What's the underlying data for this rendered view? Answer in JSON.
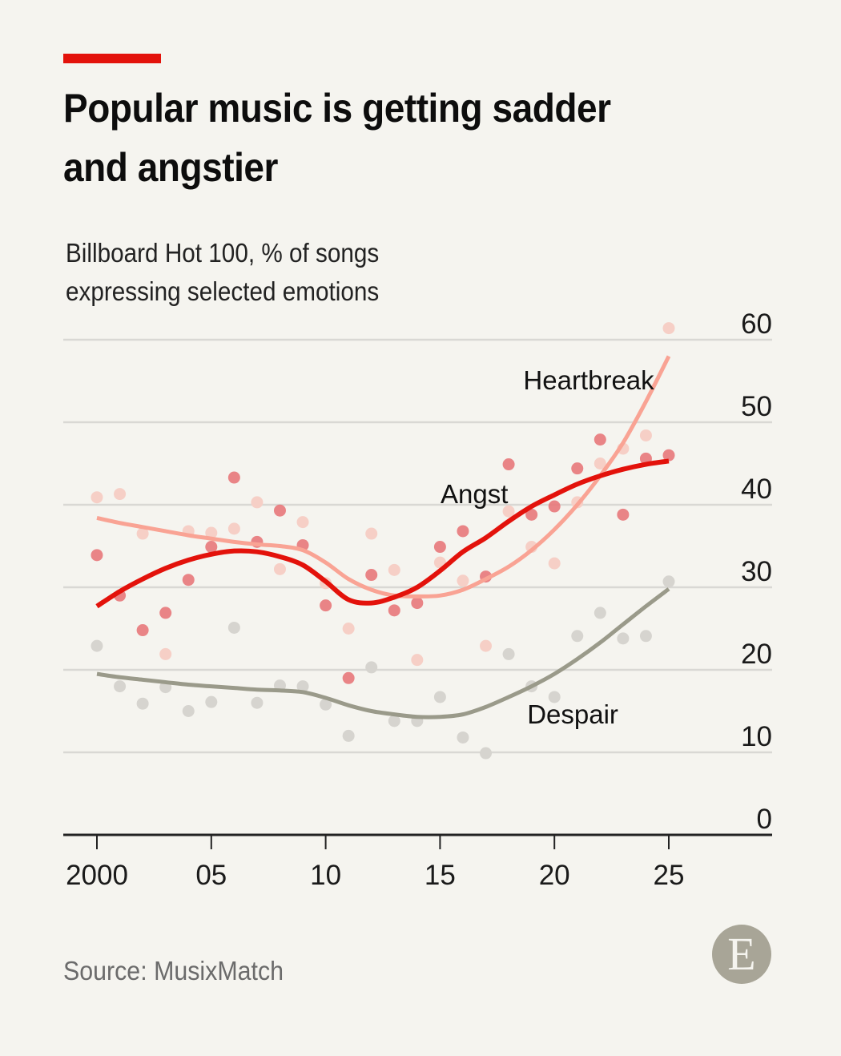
{
  "header": {
    "title": "Popular music is getting sadder and angstier",
    "subtitle": "Billboard Hot 100, % of songs expressing selected emotions"
  },
  "footer": {
    "source": "Source: MusixMatch",
    "logo_letter": "E"
  },
  "colors": {
    "accent": "#e3120b",
    "background": "#f5f4ef",
    "heartbreak_line": "#f9a394",
    "heartbreak_dot": "#f6cfc6",
    "angst_line": "#e3120b",
    "angst_dot": "#e8787a",
    "despair_line": "#9a9a8a",
    "despair_dot": "#d6d4cf",
    "gridline": "#d9d8d4",
    "axis": "#222222",
    "logo": "#a8a597"
  },
  "chart_data": {
    "type": "scatter",
    "title": "Popular music is getting sadder and angstier",
    "subtitle": "Billboard Hot 100, % of songs expressing selected emotions",
    "xlabel": "",
    "ylabel": "% of songs",
    "xlim": [
      1998.5,
      2029
    ],
    "ylim": [
      0,
      60
    ],
    "x_ticks": [
      2000,
      2005,
      2010,
      2015,
      2020,
      2025
    ],
    "x_tick_labels": [
      "2000",
      "05",
      "10",
      "15",
      "20",
      "25"
    ],
    "y_ticks": [
      0,
      10,
      20,
      30,
      40,
      50,
      60
    ],
    "y_tick_labels": [
      "0",
      "10",
      "20",
      "30",
      "40",
      "50",
      "60"
    ],
    "y_axis_side": "right",
    "grid": true,
    "legend": "direct-labels",
    "x": [
      2000,
      2001,
      2002,
      2003,
      2004,
      2005,
      2006,
      2007,
      2008,
      2009,
      2010,
      2011,
      2012,
      2013,
      2014,
      2015,
      2016,
      2017,
      2018,
      2019,
      2020,
      2021,
      2022,
      2023,
      2024,
      2025
    ],
    "series": [
      {
        "name": "Heartbreak",
        "label": "Heartbreak",
        "values": [
          40.9,
          41.3,
          36.5,
          21.9,
          36.8,
          36.6,
          37.1,
          40.3,
          32.2,
          37.9,
          30.5,
          25.0,
          36.5,
          32.1,
          21.2,
          33.0,
          30.8,
          22.9,
          39.2,
          34.9,
          32.9,
          40.3,
          45.0,
          46.8,
          48.4,
          61.4
        ],
        "trend": [
          38.4,
          37.8,
          37.3,
          36.8,
          36.3,
          35.9,
          35.5,
          35.2,
          35.0,
          34.5,
          33.0,
          31.0,
          29.7,
          29.0,
          28.9,
          29.0,
          29.7,
          31.0,
          32.5,
          34.5,
          37.0,
          40.0,
          43.5,
          47.5,
          52.5,
          58.0
        ]
      },
      {
        "name": "Angst",
        "label": "Angst",
        "values": [
          33.9,
          29.0,
          24.8,
          26.9,
          30.9,
          34.9,
          43.3,
          35.5,
          39.3,
          35.1,
          27.8,
          19.0,
          31.5,
          27.2,
          28.1,
          34.9,
          36.8,
          31.3,
          44.9,
          38.8,
          39.8,
          44.4,
          47.9,
          38.8,
          45.6,
          46.0
        ],
        "trend": [
          27.7,
          29.5,
          31.0,
          32.3,
          33.3,
          34.0,
          34.4,
          34.3,
          33.7,
          32.7,
          30.7,
          28.5,
          28.1,
          28.8,
          30.0,
          32.0,
          34.3,
          36.0,
          38.0,
          39.8,
          41.2,
          42.5,
          43.5,
          44.3,
          44.9,
          45.3
        ]
      },
      {
        "name": "Despair",
        "label": "Despair",
        "values": [
          22.9,
          18.0,
          15.9,
          17.9,
          15.0,
          16.1,
          25.1,
          16.0,
          18.1,
          18.0,
          15.8,
          12.0,
          20.3,
          13.8,
          13.8,
          16.7,
          11.8,
          9.9,
          21.9,
          18.0,
          16.7,
          24.1,
          26.9,
          23.8,
          24.1,
          30.7
        ],
        "trend": [
          19.5,
          19.1,
          18.8,
          18.5,
          18.2,
          18.0,
          17.8,
          17.6,
          17.5,
          17.3,
          16.6,
          15.7,
          15.0,
          14.6,
          14.3,
          14.3,
          14.6,
          15.5,
          16.7,
          18.0,
          19.5,
          21.3,
          23.3,
          25.5,
          27.7,
          29.8
        ]
      }
    ],
    "annotations": [
      {
        "text": "Heartbreak",
        "x": 2021.5,
        "y": 54
      },
      {
        "text": "Angst",
        "x": 2016.5,
        "y": 40.2
      },
      {
        "text": "Despair",
        "x": 2020.8,
        "y": 13.5
      }
    ]
  }
}
